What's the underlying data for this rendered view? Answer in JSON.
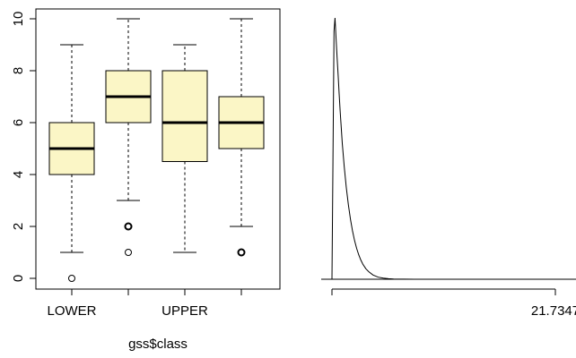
{
  "chart_data": [
    {
      "type": "box",
      "xlabel": "gss$class",
      "ylabel": "",
      "ylim": [
        0,
        10
      ],
      "yticks": [
        0,
        2,
        4,
        6,
        8,
        10
      ],
      "categories": [
        "LOWER",
        "",
        "UPPER",
        ""
      ],
      "box_color": "#fbf6c6",
      "boxes": [
        {
          "min": 1,
          "q1": 4,
          "median": 5,
          "q3": 6,
          "max": 9,
          "outliers": [
            0
          ]
        },
        {
          "min": 3,
          "q1": 6,
          "median": 7,
          "q3": 8,
          "max": 10,
          "outliers": [
            2,
            1
          ]
        },
        {
          "min": 1,
          "q1": 4.5,
          "median": 6,
          "q3": 8,
          "max": 9,
          "outliers": []
        },
        {
          "min": 2,
          "q1": 5,
          "median": 6,
          "q3": 7,
          "max": 10,
          "outliers": [
            1
          ]
        }
      ]
    },
    {
      "type": "line",
      "xlabel": "",
      "ylabel": "",
      "x_tick_labels": [
        "",
        "21.7347"
      ],
      "xlim": [
        0,
        21.7347
      ],
      "curve": {
        "x": [
          0,
          0.1,
          0.2,
          0.3,
          0.4,
          0.5,
          0.6,
          0.7,
          0.8,
          1.0,
          1.2,
          1.4,
          1.6,
          1.8,
          2.0,
          2.2,
          2.4,
          2.6,
          2.8,
          3.0,
          3.3,
          3.6,
          4.0,
          4.5,
          5.0,
          5.5,
          6.0,
          7.0,
          8.0,
          10.0,
          12.0,
          15.0,
          18.0,
          21.7347
        ],
        "y": [
          0,
          0.45,
          0.95,
          1.0,
          0.92,
          0.85,
          0.78,
          0.71,
          0.64,
          0.52,
          0.43,
          0.35,
          0.285,
          0.23,
          0.185,
          0.148,
          0.118,
          0.094,
          0.074,
          0.058,
          0.04,
          0.028,
          0.016,
          0.008,
          0.004,
          0.002,
          0.001,
          0.0003,
          0.0001,
          0,
          0,
          0,
          0,
          0
        ]
      }
    }
  ]
}
